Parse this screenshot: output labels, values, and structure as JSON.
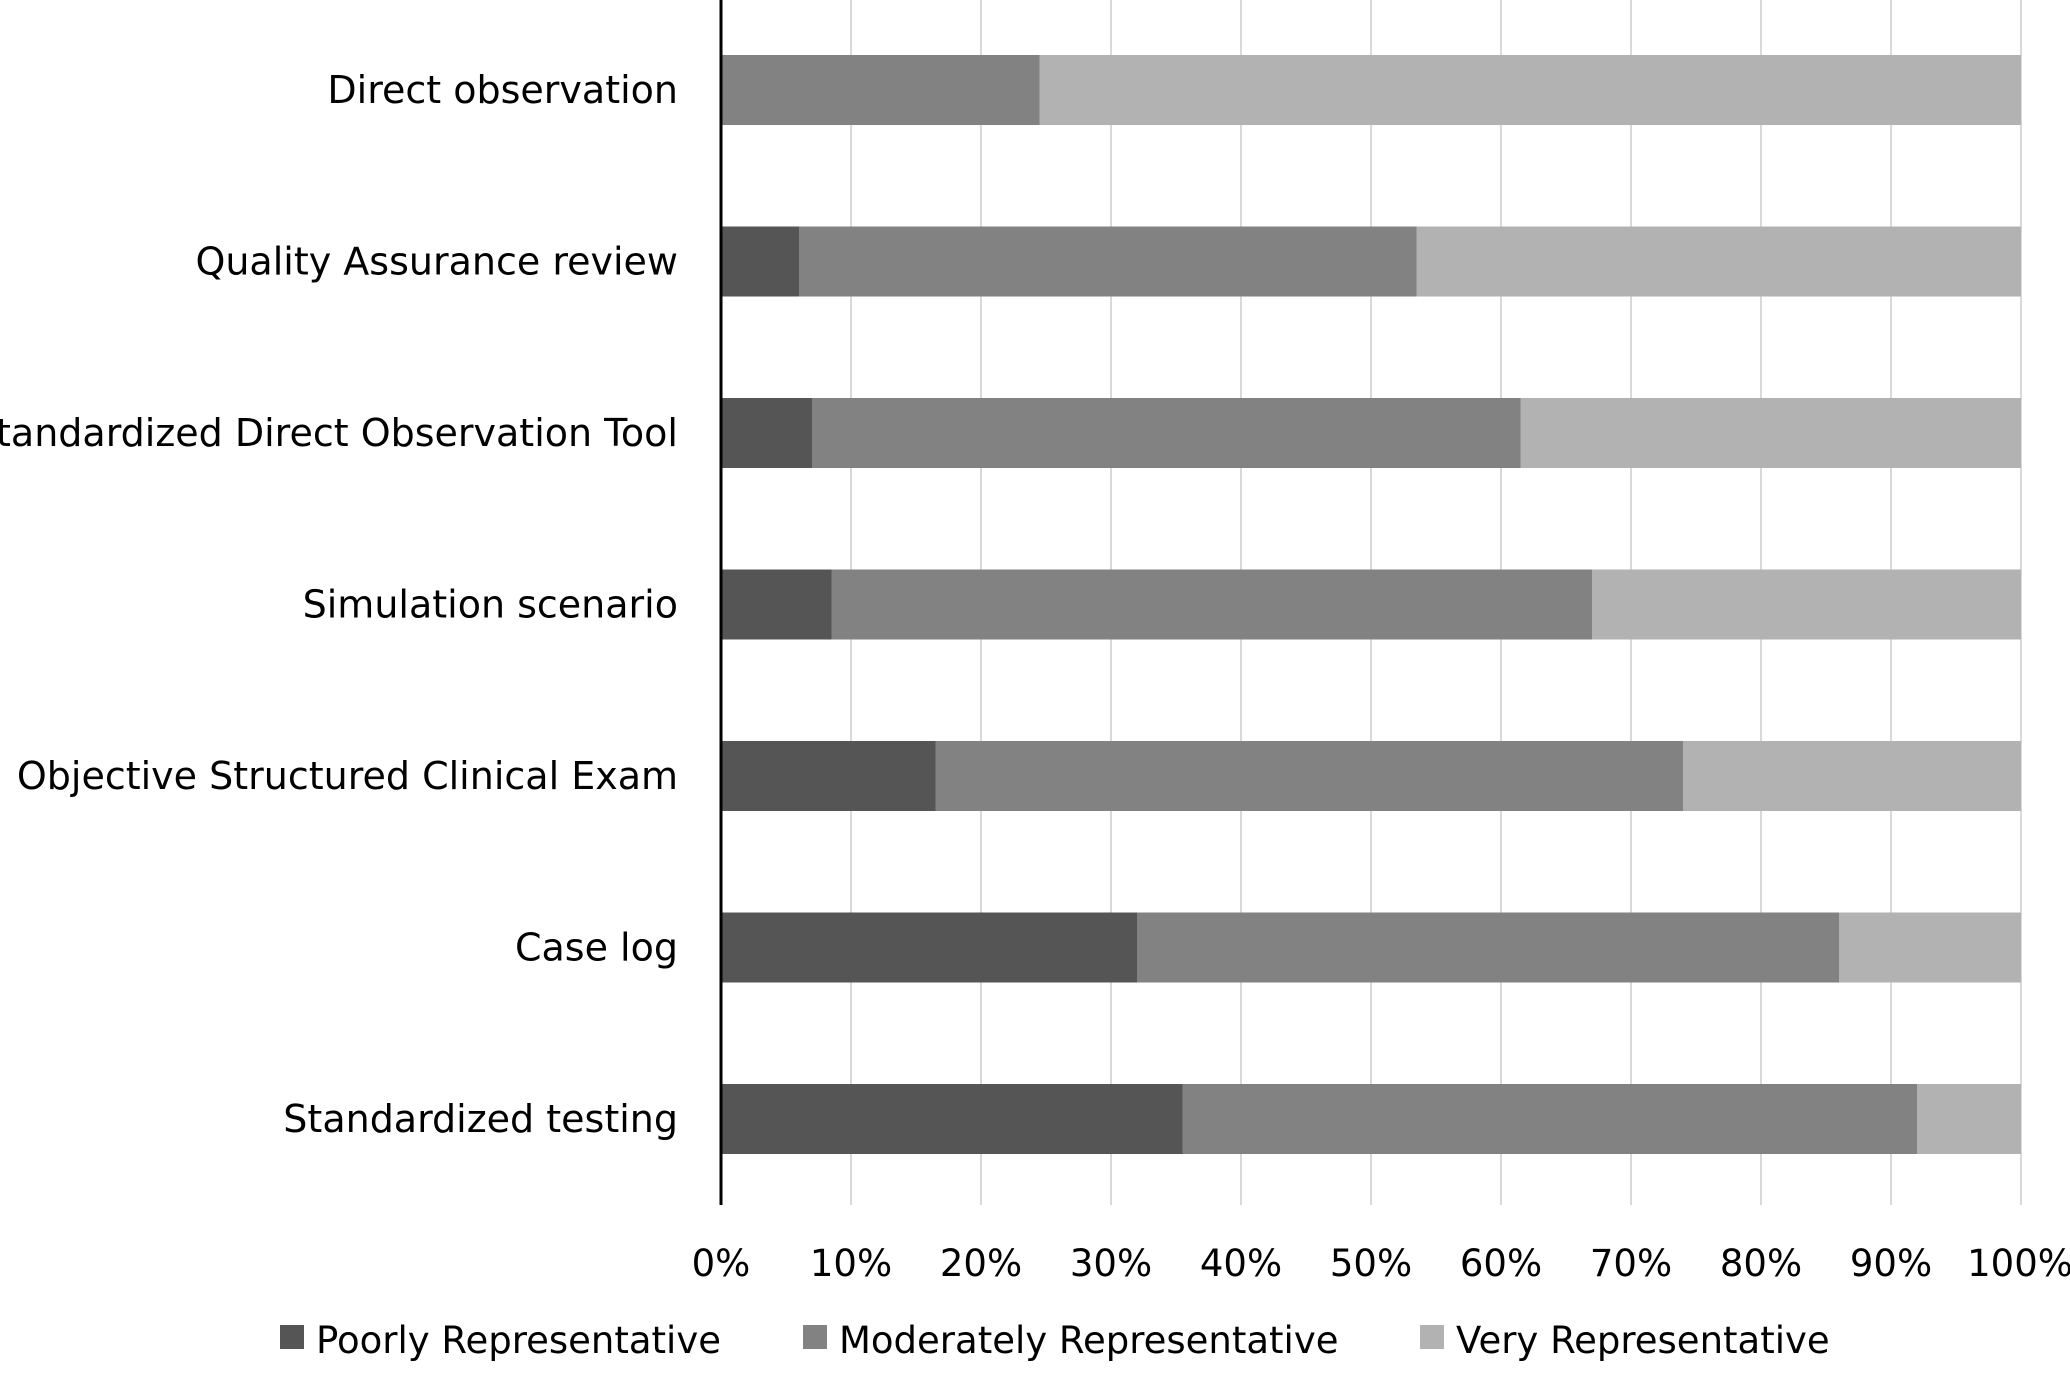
{
  "chart_data": {
    "type": "bar",
    "orientation": "horizontal",
    "stacked": "percent",
    "categories": [
      "Direct observation",
      "Quality Assurance review",
      "Standardized Direct Observation Tool",
      "Simulation scenario",
      "Objective Structured Clinical Exam",
      "Case log",
      "Standardized testing"
    ],
    "series": [
      {
        "name": "Poorly Representative",
        "color": "#555555",
        "values": [
          0,
          6,
          7,
          8.5,
          16.5,
          32,
          35.5
        ]
      },
      {
        "name": "Moderately Representative",
        "color": "#828282",
        "values": [
          24.5,
          47.5,
          54.5,
          58.5,
          57.5,
          54,
          56.5
        ]
      },
      {
        "name": "Very Representative",
        "color": "#b2b2b2",
        "values": [
          75.5,
          46.5,
          38.5,
          33,
          26,
          14,
          8
        ]
      }
    ],
    "x_ticks": [
      "0%",
      "10%",
      "20%",
      "30%",
      "40%",
      "50%",
      "60%",
      "70%",
      "80%",
      "90%",
      "100%"
    ],
    "xlim": [
      0,
      100
    ],
    "grid": "vertical",
    "legend": "bottom"
  }
}
